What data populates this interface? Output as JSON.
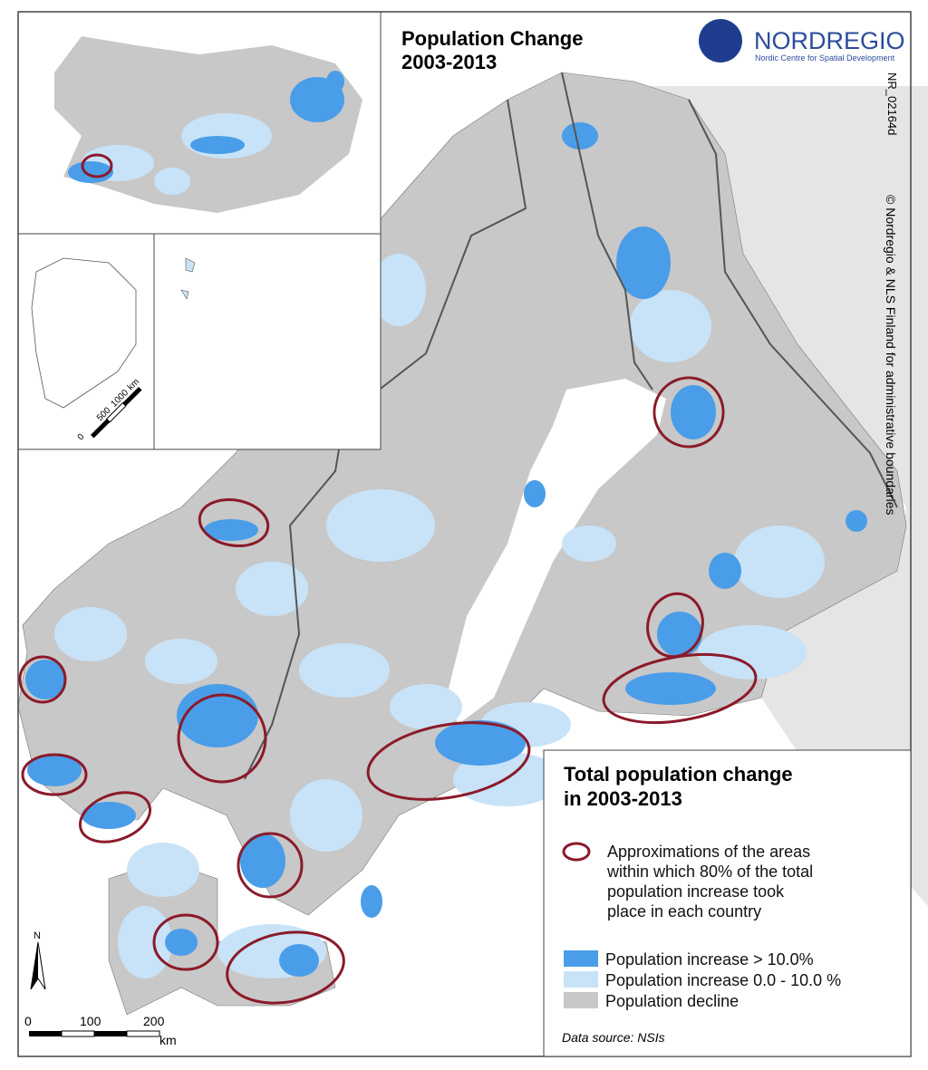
{
  "map": {
    "title": [
      "Population Change",
      "2003-2013"
    ],
    "logo": {
      "name": "NORDREGIO",
      "tagline": "Nordic Centre for Spatial Development"
    },
    "code": "NR_02164d",
    "copyright": "© Nordregio & NLS Finland for administrative boundaries",
    "legend": {
      "title": [
        "Total population change",
        "in 2003-2013"
      ],
      "outline_item": [
        "Approximations of the areas",
        "within which 80% of the total",
        "population increase took",
        "place in each country"
      ],
      "items": [
        "Population increase > 10.0%",
        "Population increase 0.0 - 10.0 %",
        "Population decline"
      ],
      "source": "Data source: NSIs"
    },
    "scale_bar": {
      "labels": [
        0,
        100,
        200
      ],
      "unit": "km"
    },
    "inset_scale_bar": {
      "labels": [
        0,
        500,
        1000
      ],
      "unit": "km"
    },
    "north_arrow": "N"
  }
}
